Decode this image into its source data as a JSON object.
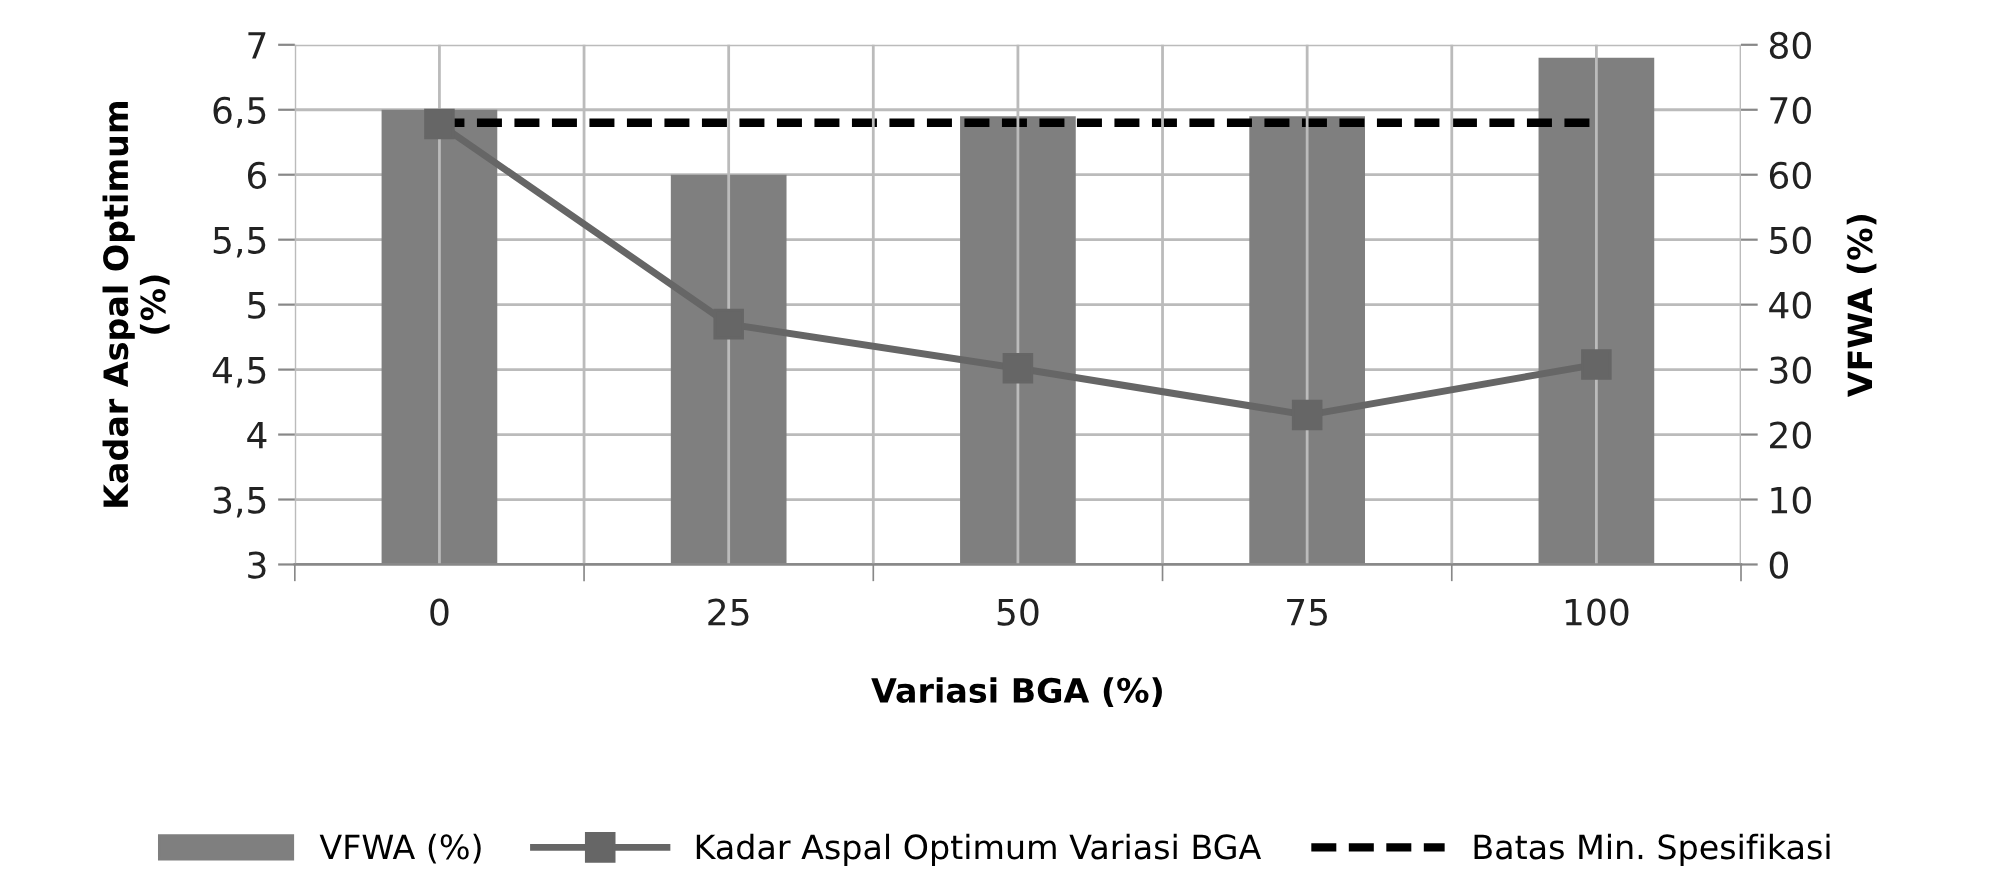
{
  "chart_data": {
    "type": "bar",
    "xlabel": "Variasi BGA (%)",
    "ylabel": "Kadar Aspal Optimum\n(%)",
    "y2label": "VFWA (%)",
    "categories": [
      "0",
      "25",
      "50",
      "75",
      "100"
    ],
    "series": [
      {
        "name": "VFWA (%)",
        "axis": "y2",
        "color": "#7f7f7f",
        "values": [
          70,
          60,
          69,
          69,
          78
        ]
      },
      {
        "name": "Kadar Aspal Optimum Variasi BGA",
        "type": "line",
        "color": "#666666",
        "marker": "square",
        "line_style": "solid",
        "values": [
          6.39,
          4.85,
          4.51,
          4.15,
          4.54
        ]
      },
      {
        "name": "Batas Min. Spesifikasi",
        "type": "line",
        "axis": "y2",
        "color": "#000000",
        "marker": "none",
        "line_style": "dashed",
        "values": [
          68,
          68,
          68,
          68,
          68
        ]
      }
    ],
    "ylim": [
      3,
      7
    ],
    "yticks": [
      3,
      {
        "value": 3.5,
        "label": "3,5"
      },
      4,
      {
        "value": 4.5,
        "label": "4,5"
      },
      5,
      {
        "value": 5.5,
        "label": "5,5"
      },
      6,
      {
        "value": 6.5,
        "label": "6,5"
      },
      7
    ],
    "y2lim": [
      0,
      80
    ],
    "y2ticks": [
      0,
      10,
      20,
      30,
      40,
      50,
      60,
      70,
      80
    ],
    "grid": true,
    "legend": "bottom"
  }
}
